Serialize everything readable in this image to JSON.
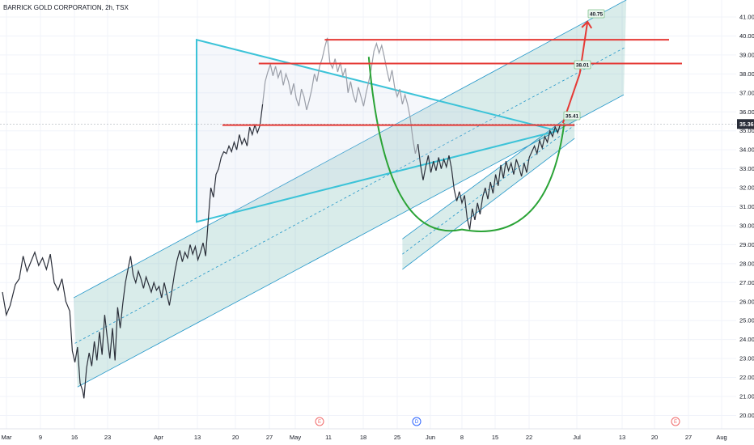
{
  "header": {
    "title": "BARRICK GOLD CORPORATION, 2h, TSX"
  },
  "chart_data": {
    "type": "line",
    "title": "BARRICK GOLD CORPORATION, 2h, TSX",
    "timeframe": "2h",
    "exchange": "TSX",
    "last_price": "35.36",
    "y_ticks": [
      "20.00",
      "21.00",
      "22.00",
      "23.00",
      "24.00",
      "25.00",
      "26.00",
      "27.00",
      "28.00",
      "29.00",
      "30.00",
      "31.00",
      "32.00",
      "33.00",
      "34.00",
      "35.00",
      "36.00",
      "37.00",
      "38.00",
      "39.00",
      "40.00",
      "41.00"
    ],
    "x_ticks": [
      "Mar",
      "9",
      "16",
      "23",
      "Apr",
      "13",
      "20",
      "27",
      "May",
      "11",
      "18",
      "25",
      "Jun",
      "8",
      "15",
      "22",
      "Jul",
      "13",
      "20",
      "27",
      "Aug"
    ],
    "ylim": [
      19.5,
      41.8
    ],
    "grid": true,
    "price_series": [
      {
        "x": 0.0,
        "y": 26.5
      },
      {
        "x": 0.3,
        "y": 25.3
      },
      {
        "x": 0.6,
        "y": 25.8
      },
      {
        "x": 1.0,
        "y": 26.9
      },
      {
        "x": 1.3,
        "y": 27.2
      },
      {
        "x": 1.6,
        "y": 28.4
      },
      {
        "x": 1.9,
        "y": 27.6
      },
      {
        "x": 2.2,
        "y": 28.1
      },
      {
        "x": 2.5,
        "y": 28.6
      },
      {
        "x": 2.8,
        "y": 27.9
      },
      {
        "x": 3.1,
        "y": 28.3
      },
      {
        "x": 3.4,
        "y": 27.7
      },
      {
        "x": 3.7,
        "y": 28.5
      },
      {
        "x": 4.0,
        "y": 27.0
      },
      {
        "x": 4.3,
        "y": 26.6
      },
      {
        "x": 4.6,
        "y": 27.2
      },
      {
        "x": 4.9,
        "y": 26.0
      },
      {
        "x": 5.2,
        "y": 25.5
      },
      {
        "x": 5.4,
        "y": 23.4
      },
      {
        "x": 5.6,
        "y": 22.8
      },
      {
        "x": 5.8,
        "y": 23.6
      },
      {
        "x": 6.0,
        "y": 21.7
      },
      {
        "x": 6.2,
        "y": 21.3
      },
      {
        "x": 6.3,
        "y": 20.9
      },
      {
        "x": 6.5,
        "y": 22.5
      },
      {
        "x": 6.7,
        "y": 23.3
      },
      {
        "x": 6.9,
        "y": 22.6
      },
      {
        "x": 7.1,
        "y": 23.9
      },
      {
        "x": 7.3,
        "y": 22.9
      },
      {
        "x": 7.5,
        "y": 24.4
      },
      {
        "x": 7.7,
        "y": 23.2
      },
      {
        "x": 7.9,
        "y": 25.3
      },
      {
        "x": 8.1,
        "y": 24.1
      },
      {
        "x": 8.3,
        "y": 23.0
      },
      {
        "x": 8.5,
        "y": 24.6
      },
      {
        "x": 8.7,
        "y": 22.9
      },
      {
        "x": 8.9,
        "y": 25.7
      },
      {
        "x": 9.1,
        "y": 24.6
      },
      {
        "x": 9.3,
        "y": 25.9
      },
      {
        "x": 9.5,
        "y": 27.0
      },
      {
        "x": 9.7,
        "y": 27.7
      },
      {
        "x": 9.9,
        "y": 28.4
      },
      {
        "x": 10.1,
        "y": 27.4
      },
      {
        "x": 10.3,
        "y": 27.0
      },
      {
        "x": 10.5,
        "y": 27.6
      },
      {
        "x": 10.7,
        "y": 27.2
      },
      {
        "x": 10.9,
        "y": 26.7
      },
      {
        "x": 11.1,
        "y": 27.3
      },
      {
        "x": 11.3,
        "y": 26.9
      },
      {
        "x": 11.5,
        "y": 26.5
      },
      {
        "x": 11.7,
        "y": 27.0
      },
      {
        "x": 11.9,
        "y": 26.6
      },
      {
        "x": 12.1,
        "y": 26.8
      },
      {
        "x": 12.3,
        "y": 26.2
      },
      {
        "x": 12.5,
        "y": 27.0
      },
      {
        "x": 12.7,
        "y": 26.4
      },
      {
        "x": 12.9,
        "y": 25.8
      },
      {
        "x": 13.1,
        "y": 26.6
      },
      {
        "x": 13.3,
        "y": 27.5
      },
      {
        "x": 13.5,
        "y": 28.2
      },
      {
        "x": 13.7,
        "y": 28.7
      },
      {
        "x": 13.9,
        "y": 28.1
      },
      {
        "x": 14.1,
        "y": 28.6
      },
      {
        "x": 14.3,
        "y": 28.3
      },
      {
        "x": 14.5,
        "y": 29.0
      },
      {
        "x": 14.7,
        "y": 28.5
      },
      {
        "x": 14.9,
        "y": 28.9
      },
      {
        "x": 15.1,
        "y": 28.2
      },
      {
        "x": 15.3,
        "y": 28.6
      },
      {
        "x": 15.5,
        "y": 29.1
      },
      {
        "x": 15.7,
        "y": 28.4
      },
      {
        "x": 15.9,
        "y": 30.3
      },
      {
        "x": 16.1,
        "y": 32.0
      },
      {
        "x": 16.3,
        "y": 31.5
      },
      {
        "x": 16.5,
        "y": 32.7
      },
      {
        "x": 16.7,
        "y": 33.0
      },
      {
        "x": 16.9,
        "y": 33.6
      },
      {
        "x": 17.1,
        "y": 33.9
      },
      {
        "x": 17.3,
        "y": 33.8
      },
      {
        "x": 17.5,
        "y": 34.2
      },
      {
        "x": 17.7,
        "y": 33.9
      },
      {
        "x": 17.9,
        "y": 34.4
      },
      {
        "x": 18.1,
        "y": 34.0
      },
      {
        "x": 18.3,
        "y": 34.8
      },
      {
        "x": 18.5,
        "y": 34.3
      },
      {
        "x": 18.7,
        "y": 34.6
      },
      {
        "x": 18.9,
        "y": 34.2
      },
      {
        "x": 19.1,
        "y": 35.2
      },
      {
        "x": 19.3,
        "y": 34.8
      },
      {
        "x": 19.5,
        "y": 35.3
      },
      {
        "x": 19.7,
        "y": 34.9
      },
      {
        "x": 19.9,
        "y": 35.3
      },
      {
        "x": 20.1,
        "y": 36.4
      },
      {
        "x": 20.3,
        "y": 37.6
      },
      {
        "x": 20.5,
        "y": 38.1
      },
      {
        "x": 20.7,
        "y": 38.5
      },
      {
        "x": 20.9,
        "y": 37.9
      },
      {
        "x": 21.1,
        "y": 38.4
      },
      {
        "x": 21.3,
        "y": 37.8
      },
      {
        "x": 21.5,
        "y": 38.2
      },
      {
        "x": 21.7,
        "y": 37.4
      },
      {
        "x": 21.9,
        "y": 38.0
      },
      {
        "x": 22.1,
        "y": 37.6
      },
      {
        "x": 22.3,
        "y": 36.9
      },
      {
        "x": 22.5,
        "y": 37.5
      },
      {
        "x": 22.7,
        "y": 36.7
      },
      {
        "x": 22.9,
        "y": 36.3
      },
      {
        "x": 23.1,
        "y": 37.2
      },
      {
        "x": 23.3,
        "y": 36.8
      },
      {
        "x": 23.5,
        "y": 36.1
      },
      {
        "x": 23.7,
        "y": 36.6
      },
      {
        "x": 23.9,
        "y": 37.2
      },
      {
        "x": 24.1,
        "y": 38.0
      },
      {
        "x": 24.3,
        "y": 37.6
      },
      {
        "x": 24.5,
        "y": 38.4
      },
      {
        "x": 24.7,
        "y": 38.8
      },
      {
        "x": 24.9,
        "y": 39.4
      },
      {
        "x": 25.1,
        "y": 39.9
      },
      {
        "x": 25.3,
        "y": 38.6
      },
      {
        "x": 25.5,
        "y": 38.3
      },
      {
        "x": 25.7,
        "y": 38.8
      },
      {
        "x": 25.9,
        "y": 38.1
      },
      {
        "x": 26.1,
        "y": 38.6
      },
      {
        "x": 26.3,
        "y": 37.9
      },
      {
        "x": 26.5,
        "y": 38.3
      },
      {
        "x": 26.7,
        "y": 37.0
      },
      {
        "x": 26.9,
        "y": 37.6
      },
      {
        "x": 27.1,
        "y": 36.9
      },
      {
        "x": 27.3,
        "y": 36.5
      },
      {
        "x": 27.5,
        "y": 37.3
      },
      {
        "x": 27.7,
        "y": 36.8
      },
      {
        "x": 27.9,
        "y": 36.3
      },
      {
        "x": 28.1,
        "y": 37.0
      },
      {
        "x": 28.3,
        "y": 37.6
      },
      {
        "x": 28.5,
        "y": 38.3
      },
      {
        "x": 28.7,
        "y": 39.2
      },
      {
        "x": 28.9,
        "y": 39.6
      },
      {
        "x": 29.1,
        "y": 39.1
      },
      {
        "x": 29.3,
        "y": 39.5
      },
      {
        "x": 29.5,
        "y": 38.9
      },
      {
        "x": 29.7,
        "y": 38.2
      },
      {
        "x": 29.9,
        "y": 37.6
      },
      {
        "x": 30.1,
        "y": 38.2
      },
      {
        "x": 30.3,
        "y": 37.3
      },
      {
        "x": 30.5,
        "y": 36.8
      },
      {
        "x": 30.7,
        "y": 37.2
      },
      {
        "x": 30.9,
        "y": 36.4
      },
      {
        "x": 31.1,
        "y": 36.9
      },
      {
        "x": 31.3,
        "y": 36.4
      },
      {
        "x": 31.5,
        "y": 35.7
      },
      {
        "x": 31.7,
        "y": 34.6
      },
      {
        "x": 31.9,
        "y": 33.8
      },
      {
        "x": 32.1,
        "y": 34.3
      },
      {
        "x": 32.3,
        "y": 33.2
      },
      {
        "x": 32.5,
        "y": 32.4
      },
      {
        "x": 32.7,
        "y": 33.1
      },
      {
        "x": 32.9,
        "y": 33.7
      },
      {
        "x": 33.1,
        "y": 32.8
      },
      {
        "x": 33.3,
        "y": 33.4
      },
      {
        "x": 33.5,
        "y": 32.9
      },
      {
        "x": 33.7,
        "y": 33.6
      },
      {
        "x": 33.9,
        "y": 33.0
      },
      {
        "x": 34.1,
        "y": 33.5
      },
      {
        "x": 34.3,
        "y": 33.1
      },
      {
        "x": 34.5,
        "y": 33.7
      },
      {
        "x": 34.7,
        "y": 33.0
      },
      {
        "x": 34.9,
        "y": 31.9
      },
      {
        "x": 35.1,
        "y": 31.3
      },
      {
        "x": 35.3,
        "y": 31.8
      },
      {
        "x": 35.5,
        "y": 31.2
      },
      {
        "x": 35.7,
        "y": 31.6
      },
      {
        "x": 35.9,
        "y": 30.4
      },
      {
        "x": 36.1,
        "y": 29.8
      },
      {
        "x": 36.3,
        "y": 30.9
      },
      {
        "x": 36.5,
        "y": 30.3
      },
      {
        "x": 36.7,
        "y": 31.2
      },
      {
        "x": 36.9,
        "y": 30.6
      },
      {
        "x": 37.1,
        "y": 31.5
      },
      {
        "x": 37.3,
        "y": 32.0
      },
      {
        "x": 37.5,
        "y": 31.4
      },
      {
        "x": 37.7,
        "y": 32.3
      },
      {
        "x": 37.9,
        "y": 31.7
      },
      {
        "x": 38.1,
        "y": 32.7
      },
      {
        "x": 38.3,
        "y": 32.1
      },
      {
        "x": 38.5,
        "y": 33.2
      },
      {
        "x": 38.7,
        "y": 32.5
      },
      {
        "x": 38.9,
        "y": 33.4
      },
      {
        "x": 39.1,
        "y": 32.9
      },
      {
        "x": 39.3,
        "y": 33.3
      },
      {
        "x": 39.5,
        "y": 32.7
      },
      {
        "x": 39.7,
        "y": 33.5
      },
      {
        "x": 39.9,
        "y": 33.1
      },
      {
        "x": 40.1,
        "y": 32.6
      },
      {
        "x": 40.3,
        "y": 33.3
      },
      {
        "x": 40.5,
        "y": 32.8
      },
      {
        "x": 40.7,
        "y": 33.6
      },
      {
        "x": 40.9,
        "y": 33.9
      },
      {
        "x": 41.1,
        "y": 34.2
      },
      {
        "x": 41.3,
        "y": 33.8
      },
      {
        "x": 41.5,
        "y": 34.5
      },
      {
        "x": 41.7,
        "y": 34.1
      },
      {
        "x": 41.9,
        "y": 34.7
      },
      {
        "x": 42.1,
        "y": 34.4
      },
      {
        "x": 42.3,
        "y": 35.0
      },
      {
        "x": 42.5,
        "y": 34.7
      },
      {
        "x": 42.7,
        "y": 35.2
      },
      {
        "x": 42.9,
        "y": 34.9
      },
      {
        "x": 43.1,
        "y": 35.36
      }
    ],
    "price_series_faded_range": [
      20.0,
      32.0
    ],
    "resistance_levels": [
      {
        "price": 39.8,
        "x_start": 24.9,
        "x_end": 51.5
      },
      {
        "price": 38.55,
        "x_start": 19.8,
        "x_end": 52.5
      },
      {
        "price": 35.3,
        "x_start": 17.0,
        "x_end": 44.2
      }
    ],
    "trend_channel_main": {
      "lower": [
        [
          5.8,
          21.5
        ],
        [
          48.0,
          36.9
        ]
      ],
      "upper": [
        [
          5.5,
          26.2
        ],
        [
          48.2,
          41.9
        ]
      ],
      "mid": [
        [
          5.6,
          23.8
        ],
        [
          48.1,
          39.4
        ]
      ]
    },
    "trend_channel_secondary": {
      "lower": [
        [
          30.9,
          27.7
        ],
        [
          44.2,
          34.6
        ]
      ],
      "upper": [
        [
          30.9,
          29.3
        ],
        [
          44.2,
          36.0
        ]
      ],
      "mid": [
        [
          30.9,
          28.5
        ],
        [
          44.2,
          35.3
        ]
      ]
    },
    "triangle": {
      "points": [
        [
          15.0,
          39.8
        ],
        [
          15.0,
          30.2
        ],
        [
          42.9,
          35.0
        ]
      ]
    },
    "cup_arc": {
      "start": [
        28.3,
        38.9
      ],
      "bottom": [
        35.5,
        29.8
      ],
      "end": [
        43.4,
        35.4
      ]
    },
    "projection": {
      "points": [
        [
          43.3,
          35.41
        ],
        [
          44.6,
          38.01
        ],
        [
          45.2,
          40.75
        ]
      ]
    },
    "annotations": [
      "35.41",
      "38.01",
      "40.75"
    ],
    "events": [
      {
        "label": "E",
        "x": 24.5,
        "color": "#f06a6a"
      },
      {
        "label": "D",
        "x": 32.0,
        "color": "#2962ff"
      },
      {
        "label": "E",
        "x": 52.0,
        "color": "#f06a6a"
      }
    ]
  }
}
